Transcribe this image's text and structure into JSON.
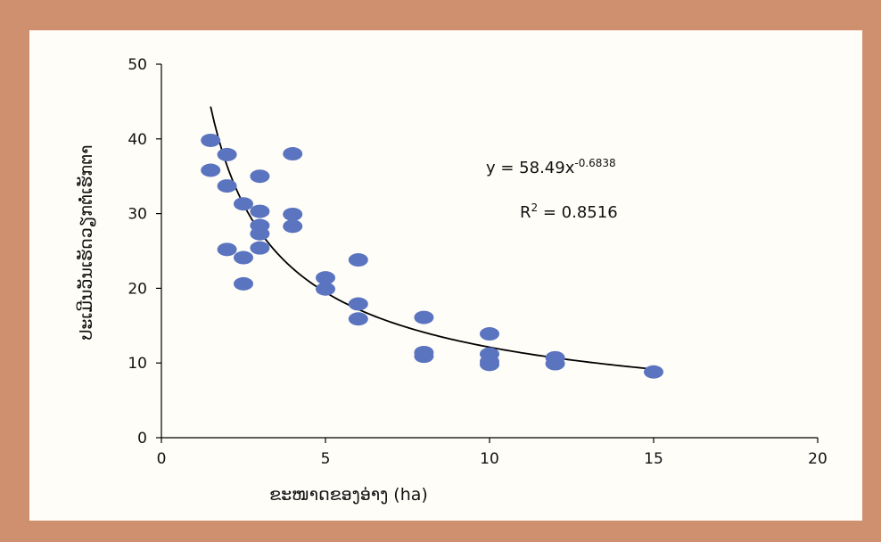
{
  "colors": {
    "frame": "#cf9070",
    "panel": "#fffdf8",
    "points": "#5b74c0",
    "trendline": "#000000",
    "axis": "#000000"
  },
  "chart_data": {
    "type": "scatter",
    "title": "",
    "xlabel": "ຂະໜາດຂອງອ່າງ (ha)",
    "ylabel": "ປະເມີນວັນເຮັດວຽກຕໍ່ເຮັກຕາ",
    "xlim": [
      0,
      20
    ],
    "ylim": [
      0,
      50
    ],
    "xticks": [
      0,
      5,
      10,
      15,
      20
    ],
    "yticks": [
      0,
      10,
      20,
      30,
      40,
      50
    ],
    "grid": false,
    "legend": "none",
    "series": [
      {
        "points": [
          [
            1.5,
            39.8
          ],
          [
            1.5,
            35.8
          ],
          [
            2,
            37.9
          ],
          [
            2,
            33.7
          ],
          [
            2,
            25.2
          ],
          [
            2.5,
            31.3
          ],
          [
            2.5,
            24.1
          ],
          [
            2.5,
            20.6
          ],
          [
            3,
            35.0
          ],
          [
            3,
            30.3
          ],
          [
            3,
            28.4
          ],
          [
            3,
            27.3
          ],
          [
            3,
            25.4
          ],
          [
            4,
            38.0
          ],
          [
            4,
            29.9
          ],
          [
            4,
            28.3
          ],
          [
            5,
            21.4
          ],
          [
            5,
            19.9
          ],
          [
            6,
            23.8
          ],
          [
            6,
            17.9
          ],
          [
            6,
            15.9
          ],
          [
            8,
            16.1
          ],
          [
            8,
            11.4
          ],
          [
            8,
            10.9
          ],
          [
            10,
            13.9
          ],
          [
            10,
            11.2
          ],
          [
            10,
            10.2
          ],
          [
            10,
            9.8
          ],
          [
            12,
            10.7
          ],
          [
            12,
            9.9
          ],
          [
            15,
            8.8
          ]
        ]
      }
    ],
    "trendline": {
      "type": "power",
      "a": 58.49,
      "b": -0.6838,
      "x_range": [
        1.5,
        15
      ],
      "equation_text": "y = 58.49x",
      "equation_exponent": "-0.6838",
      "r2_prefix": "R",
      "r2_sup": "2",
      "r2_rest": " = 0.8516"
    }
  }
}
